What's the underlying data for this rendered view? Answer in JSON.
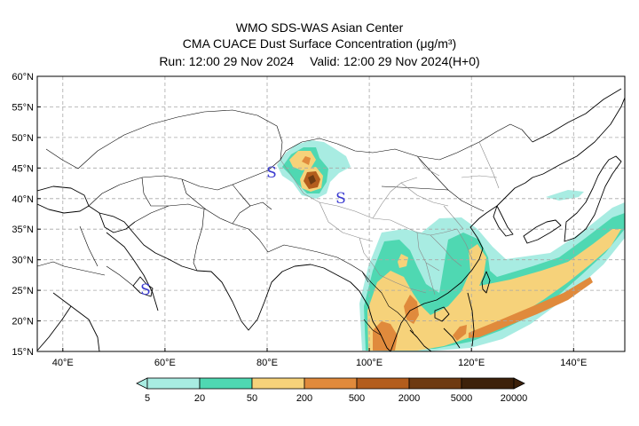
{
  "header": {
    "line1": "WMO SDS-WAS Asian Center",
    "line2": "CMA CUACE Dust Surface Concentration (μg/m³)",
    "run_label": "Run: 12:00 29 Nov 2024",
    "valid_label": "Valid: 12:00 29 Nov 2024(H+0)"
  },
  "map": {
    "lat_labels": [
      "60°N",
      "55°N",
      "50°N",
      "45°N",
      "40°N",
      "35°N",
      "30°N",
      "25°N",
      "20°N",
      "15°N"
    ],
    "lon_labels": [
      "40°E",
      "60°E",
      "80°E",
      "100°E",
      "120°E",
      "140°E"
    ],
    "lat_range": [
      15,
      60
    ],
    "lon_range": [
      35,
      150
    ],
    "gridlines": true,
    "markers": [
      {
        "symbol": "S",
        "lon": 80.5,
        "lat": 44.5
      },
      {
        "symbol": "S",
        "lon": 94,
        "lat": 39.8
      },
      {
        "symbol": "S",
        "lon": 56,
        "lat": 23.2
      }
    ]
  },
  "colorbar": {
    "levels": [
      "5",
      "20",
      "50",
      "200",
      "500",
      "2000",
      "5000",
      "20000"
    ],
    "colors": [
      "#a8ece2",
      "#4fd8b2",
      "#f6d27a",
      "#e08a3c",
      "#b35d1d",
      "#6e3a12",
      "#3d210a"
    ],
    "extend": "both"
  }
}
